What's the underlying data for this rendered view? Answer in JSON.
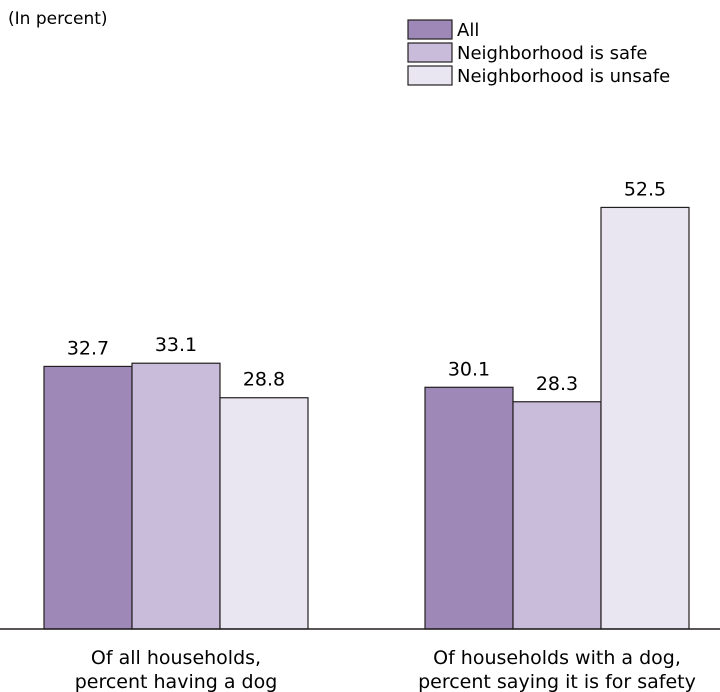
{
  "chart_data": {
    "type": "bar",
    "unit_label": "(In percent)",
    "categories": [
      [
        "Of all households,",
        "percent having a dog"
      ],
      [
        "Of households with a dog,",
        "percent saying it is for safety"
      ]
    ],
    "series": [
      {
        "name": "All",
        "values": [
          32.7,
          30.1
        ],
        "color": "#9e88b8"
      },
      {
        "name": "Neighborhood is safe",
        "values": [
          33.1,
          28.3
        ],
        "color": "#c8bcda"
      },
      {
        "name": "Neighborhood is unsafe",
        "values": [
          28.8,
          52.5
        ],
        "color": "#e9e5f1"
      }
    ],
    "ylim": [
      0,
      60
    ],
    "legend_position": "top-right",
    "grid": false,
    "value_labels": [
      "32.7",
      "33.1",
      "28.8",
      "30.1",
      "28.3",
      "52.5"
    ]
  }
}
